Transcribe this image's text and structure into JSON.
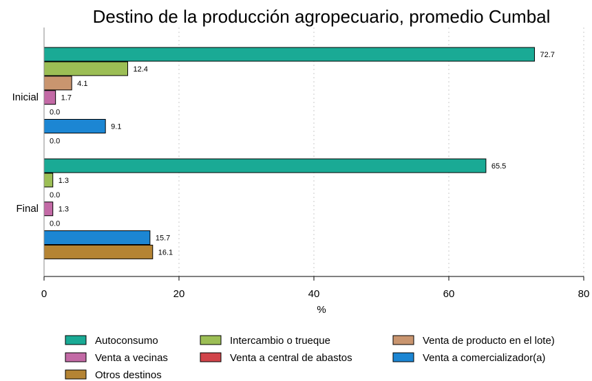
{
  "chart_data": {
    "type": "bar",
    "orientation": "horizontal",
    "title": "Destino de la producción agropecuario, promedio Cumbal",
    "xlabel": "%",
    "xlim": [
      0,
      80
    ],
    "xticks": [
      0,
      20,
      40,
      60,
      80
    ],
    "grid": "vertical dotted",
    "legend_position": "bottom",
    "categories": [
      "Inicial",
      "Final"
    ],
    "series": [
      {
        "name": "Autoconsumo",
        "color": "#1aaa95",
        "values": [
          72.7,
          65.5
        ],
        "labels": [
          "72.7",
          "65.5"
        ]
      },
      {
        "name": "Intercambio o trueque",
        "color": "#9cbe55",
        "values": [
          12.4,
          1.3
        ],
        "labels": [
          "12.4",
          "1.3"
        ]
      },
      {
        "name": "Venta de producto en el lote)",
        "color": "#c9956f",
        "values": [
          4.1,
          0.0
        ],
        "labels": [
          "4.1",
          "0.0"
        ]
      },
      {
        "name": "Venta a vecinas",
        "color": "#c36aa6",
        "values": [
          1.7,
          1.3
        ],
        "labels": [
          "1.7",
          "1.3"
        ]
      },
      {
        "name": "Venta a central de abastos",
        "color": "#d1444a",
        "values": [
          0.0,
          0.0
        ],
        "labels": [
          "0.0",
          "0.0"
        ]
      },
      {
        "name": "Venta a comercializador(a)",
        "color": "#1c86d3",
        "values": [
          9.1,
          15.7
        ],
        "labels": [
          "9.1",
          "15.7"
        ]
      },
      {
        "name": "Otros destinos",
        "color": "#b58434",
        "values": [
          0.0,
          16.1
        ],
        "labels": [
          "0.0",
          "16.1"
        ]
      }
    ]
  }
}
